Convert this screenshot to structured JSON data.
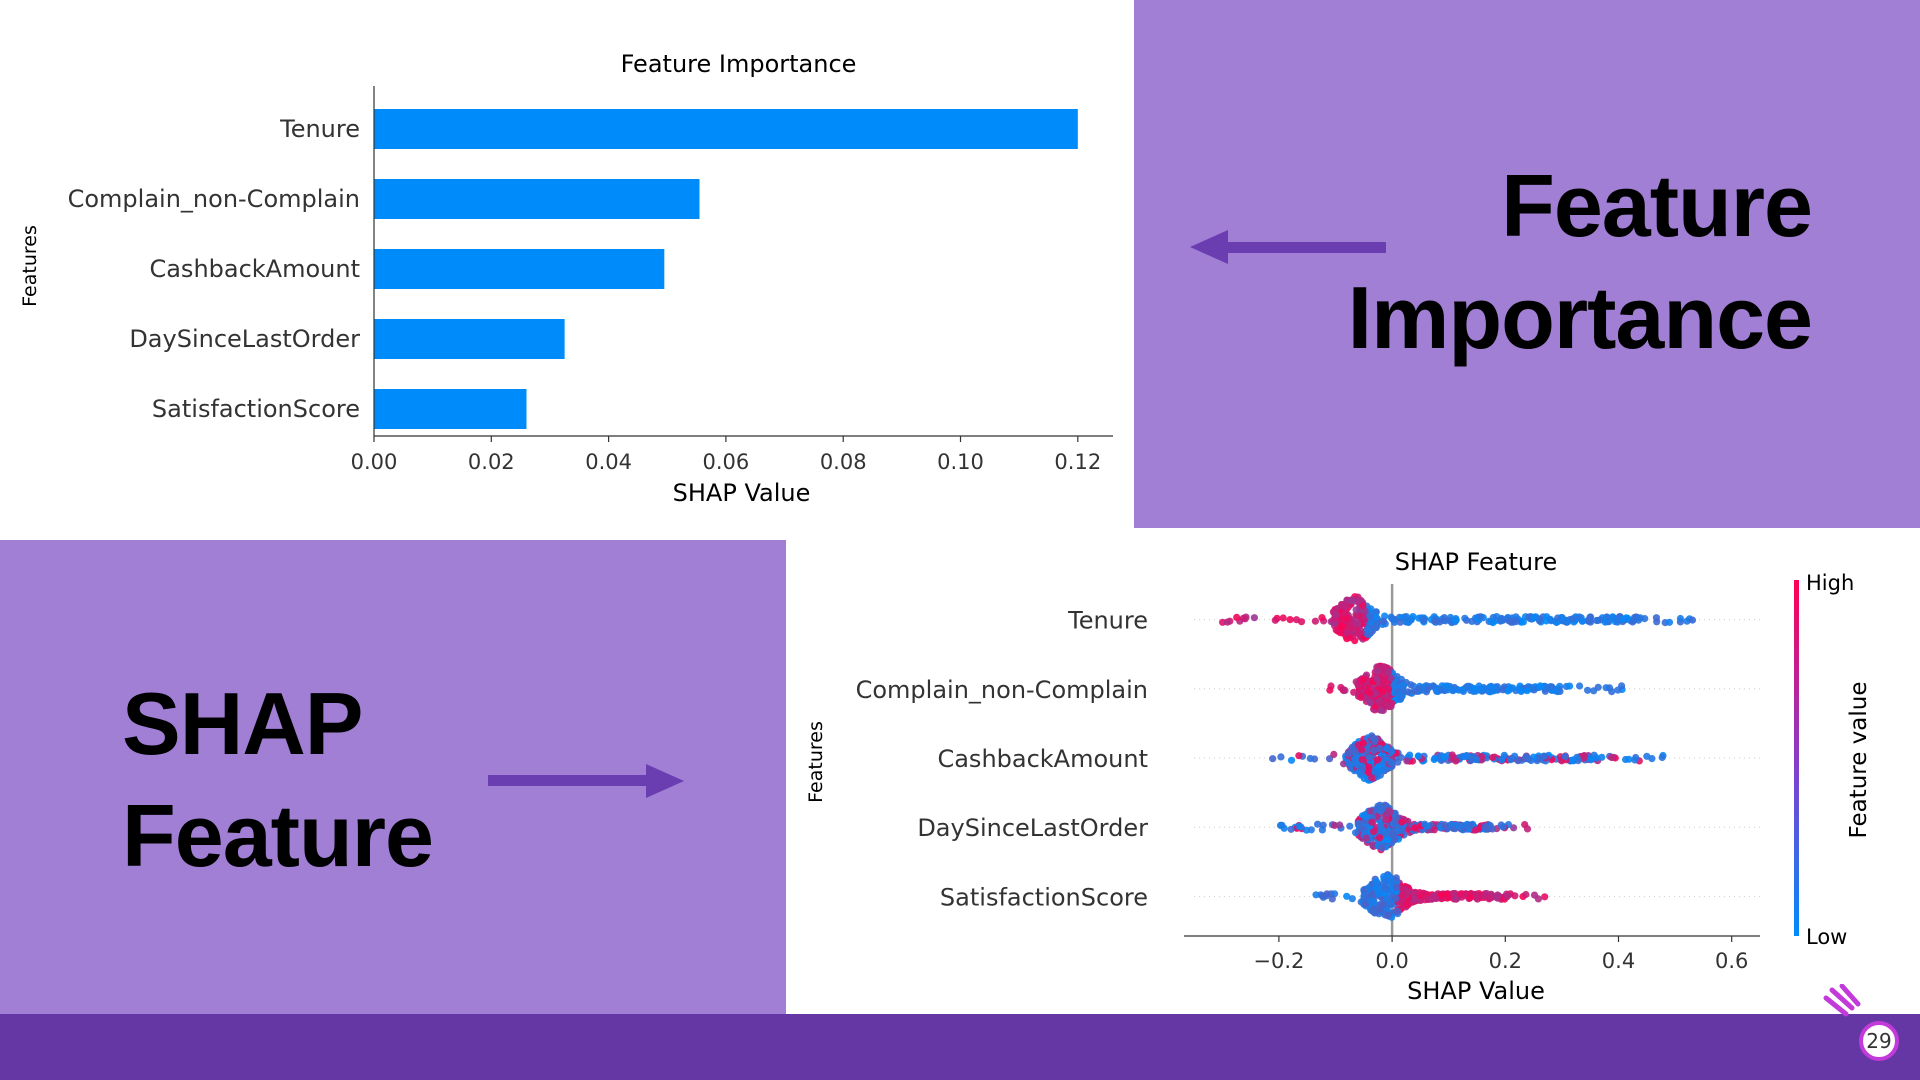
{
  "slide": {
    "feature_importance_title": [
      "Feature",
      "Importance"
    ],
    "shap_feature_title": [
      "SHAP",
      "Feature"
    ],
    "page_number": "29",
    "colors": {
      "panel": "#a07fd5",
      "footer": "#6537a5",
      "arrow": "#6a3db0",
      "bar": "#008bfb",
      "high": "#ff0052",
      "low": "#008bfb"
    }
  },
  "chart_data": [
    {
      "type": "bar",
      "orientation": "horizontal",
      "title": "Feature Importance",
      "xlabel": "SHAP Value",
      "ylabel": "Features",
      "categories": [
        "Tenure",
        "Complain_non-Complain",
        "CashbackAmount",
        "DaySinceLastOrder",
        "SatisfactionScore"
      ],
      "values": [
        0.12,
        0.0555,
        0.0495,
        0.0325,
        0.026
      ],
      "xlim": [
        0.0,
        0.126
      ],
      "xticks": [
        "0.00",
        "0.02",
        "0.04",
        "0.06",
        "0.08",
        "0.10",
        "0.12"
      ],
      "xtick_values": [
        0,
        0.02,
        0.04,
        0.06,
        0.08,
        0.1,
        0.12
      ],
      "grid": false
    },
    {
      "type": "scatter",
      "subtype": "beeswarm",
      "title": "SHAP Feature",
      "xlabel": "SHAP Value",
      "ylabel": "Features",
      "categories": [
        "Tenure",
        "Complain_non-Complain",
        "CashbackAmount",
        "DaySinceLastOrder",
        "SatisfactionScore"
      ],
      "xlim": [
        -0.35,
        0.65
      ],
      "xticks": [
        "−0.2",
        "0.0",
        "0.2",
        "0.4",
        "0.6"
      ],
      "xtick_values": [
        -0.2,
        0,
        0.2,
        0.4,
        0.6
      ],
      "colorbar": {
        "label": "Feature value",
        "high_label": "High",
        "low_label": "Low"
      },
      "series": [
        {
          "feature": "Tenure",
          "min": -0.31,
          "max": 0.61,
          "peak": -0.065,
          "high_side": "negative"
        },
        {
          "feature": "Complain_non-Complain",
          "min": -0.11,
          "max": 0.41,
          "peak": -0.02,
          "high_side": "negative"
        },
        {
          "feature": "CashbackAmount",
          "min": -0.23,
          "max": 0.51,
          "peak": -0.04,
          "high_side": "mixed"
        },
        {
          "feature": "DaySinceLastOrder",
          "min": -0.21,
          "max": 0.24,
          "peak": -0.02,
          "high_side": "mixed"
        },
        {
          "feature": "SatisfactionScore",
          "min": -0.14,
          "max": 0.27,
          "peak": -0.01,
          "high_side": "positive"
        }
      ]
    }
  ]
}
